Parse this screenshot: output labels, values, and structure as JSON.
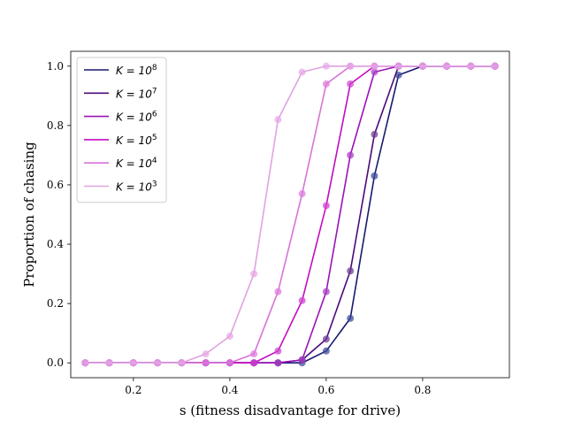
{
  "chart_data": {
    "type": "line",
    "title": "",
    "xlabel": "s (fitness disadvantage for drive)",
    "ylabel": "Proportion of chasing",
    "xlim": [
      0.07,
      0.98
    ],
    "ylim": [
      -0.05,
      1.05
    ],
    "xticks": [
      0.2,
      0.4,
      0.6,
      0.8
    ],
    "xtick_labels": [
      "0.2",
      "0.4",
      "0.6",
      "0.8"
    ],
    "yticks": [
      0.0,
      0.2,
      0.4,
      0.6,
      0.8,
      1.0
    ],
    "ytick_labels": [
      "0.0",
      "0.2",
      "0.4",
      "0.6",
      "0.8",
      "1.0"
    ],
    "grid": false,
    "legend_position": "upper-left",
    "x": [
      0.1,
      0.15,
      0.2,
      0.25,
      0.3,
      0.35,
      0.4,
      0.45,
      0.5,
      0.55,
      0.6,
      0.65,
      0.7,
      0.75,
      0.8,
      0.85,
      0.9,
      0.95
    ],
    "series": [
      {
        "name": "K = 10^8",
        "label_base": "K = 10",
        "label_exp": "8",
        "color": "#191970",
        "marker_color": "#3a4a9a",
        "values": [
          0,
          0,
          0,
          0,
          0,
          0,
          0,
          0,
          0,
          0,
          0.04,
          0.15,
          0.63,
          0.97,
          1,
          1,
          1,
          1
        ]
      },
      {
        "name": "K = 10^7",
        "label_base": "K = 10",
        "label_exp": "7",
        "color": "#4b0a7a",
        "marker_color": "#6a3a90",
        "values": [
          0,
          0,
          0,
          0,
          0,
          0,
          0,
          0,
          0,
          0.01,
          0.08,
          0.31,
          0.77,
          1,
          1,
          1,
          1,
          1
        ]
      },
      {
        "name": "K = 10^6",
        "label_base": "K = 10",
        "label_exp": "6",
        "color": "#9b12b8",
        "marker_color": "#a83cc4",
        "values": [
          0,
          0,
          0,
          0,
          0,
          0,
          0,
          0,
          0,
          0.01,
          0.24,
          0.7,
          0.98,
          1,
          1,
          1,
          1,
          1
        ]
      },
      {
        "name": "K = 10^5",
        "label_base": "K = 10",
        "label_exp": "5",
        "color": "#c20cc2",
        "marker_color": "#d040d0",
        "values": [
          0,
          0,
          0,
          0,
          0,
          0,
          0,
          0,
          0.04,
          0.21,
          0.53,
          0.94,
          1,
          1,
          1,
          1,
          1,
          1
        ]
      },
      {
        "name": "K = 10^4",
        "label_base": "K = 10",
        "label_exp": "4",
        "color": "#d873d8",
        "marker_color": "#dc78dc",
        "values": [
          0,
          0,
          0,
          0,
          0,
          0,
          0,
          0.03,
          0.24,
          0.57,
          0.94,
          1,
          1,
          1,
          1,
          1,
          1,
          1
        ]
      },
      {
        "name": "K = 10^3",
        "label_base": "K = 10",
        "label_exp": "3",
        "color": "#e0a3e0",
        "marker_color": "#e6a6e6",
        "values": [
          0,
          0,
          0,
          0,
          0,
          0.03,
          0.09,
          0.3,
          0.82,
          0.98,
          1,
          1,
          1,
          1,
          1,
          1,
          1,
          1
        ]
      }
    ]
  }
}
